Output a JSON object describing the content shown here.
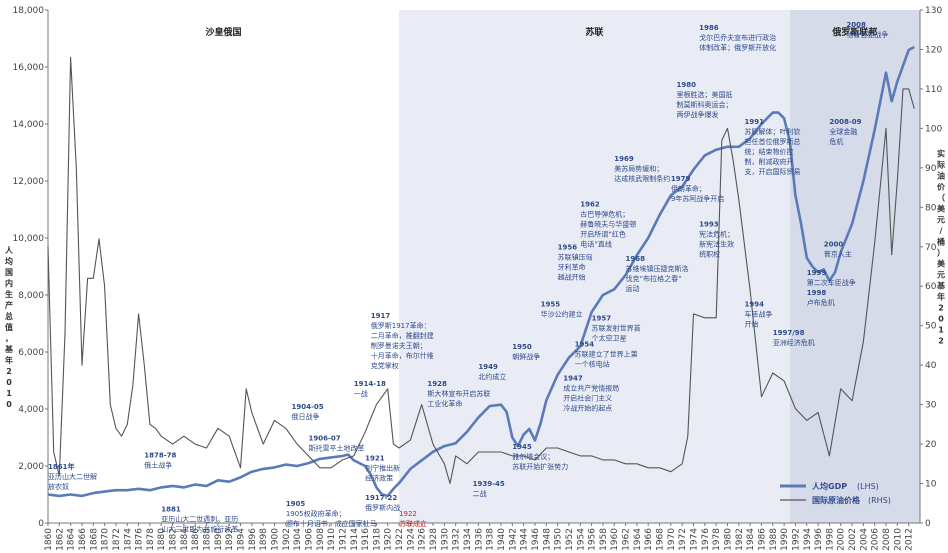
{
  "chart_data": {
    "type": "line",
    "title": "",
    "ylabel_left": "人均国内生产总值，基年2010",
    "ylabel_right": "实际油价（美元/桶）美元基年2012",
    "ylim_left": [
      0,
      18000
    ],
    "ylim_right": [
      0,
      130
    ],
    "xlim": [
      1860,
      2014
    ],
    "y_ticks_left": [
      0,
      2000,
      4000,
      6000,
      8000,
      10000,
      12000,
      14000,
      16000,
      18000
    ],
    "y_tick_labels_left": [
      "0",
      "2,000",
      "4,000",
      "6,000",
      "8,000",
      "10,000",
      "12,000",
      "14,000",
      "16,000",
      "18,000"
    ],
    "y_ticks_right": [
      0,
      10,
      20,
      30,
      40,
      50,
      60,
      70,
      80,
      90,
      100,
      110,
      120,
      130
    ],
    "y_tick_labels_right": [
      "0",
      "10",
      "20",
      "30",
      "40",
      "50",
      "60",
      "70",
      "80",
      "90",
      "100",
      "110",
      "120",
      "130"
    ],
    "x_tick_labels": [
      "1860",
      "1862",
      "1864",
      "1866",
      "1868",
      "1870",
      "1872",
      "1874",
      "1876",
      "1878",
      "1880",
      "1882",
      "1884",
      "1886",
      "1888",
      "1890",
      "1892",
      "1894",
      "1896",
      "1898",
      "1900",
      "1902",
      "1904",
      "1906",
      "1908",
      "1910",
      "1912",
      "1914",
      "1916",
      "1918",
      "1920",
      "1922",
      "1924",
      "1926",
      "1928",
      "1930",
      "1932",
      "1934",
      "1936",
      "1938",
      "1940",
      "1942",
      "1944",
      "1946",
      "1948",
      "1950",
      "1952",
      "1954",
      "1956",
      "1958",
      "1960",
      "1962",
      "1964",
      "1966",
      "1968",
      "1970",
      "1972",
      "1974",
      "1976",
      "1978",
      "1980",
      "1982",
      "1984",
      "1986",
      "1988",
      "1990",
      "1992",
      "1994",
      "1996",
      "1998",
      "2000",
      "2002",
      "2004",
      "2006",
      "2008",
      "2010",
      "2012"
    ],
    "eras": [
      {
        "label": "沙皇俄国",
        "from": 1860,
        "to": 1922,
        "shade": "#ffffff"
      },
      {
        "label": "苏联",
        "from": 1922,
        "to": 1991,
        "shade": "#e9ecf5"
      },
      {
        "label": "俄罗斯联邦",
        "from": 1991,
        "to": 2014,
        "shade": "#d6dbea"
      }
    ],
    "series": [
      {
        "name": "人均GDP",
        "axis_label": "(LHS)",
        "axis": "left",
        "color": "#5b7ab8",
        "x": [
          1860,
          1862,
          1864,
          1866,
          1868,
          1870,
          1872,
          1874,
          1876,
          1878,
          1880,
          1882,
          1884,
          1886,
          1888,
          1890,
          1892,
          1894,
          1896,
          1898,
          1900,
          1902,
          1904,
          1906,
          1908,
          1910,
          1912,
          1913,
          1914,
          1916,
          1917,
          1918,
          1919,
          1920,
          1921,
          1922,
          1924,
          1926,
          1928,
          1930,
          1932,
          1934,
          1936,
          1938,
          1940,
          1941,
          1942,
          1943,
          1944,
          1945,
          1946,
          1947,
          1948,
          1950,
          1952,
          1954,
          1956,
          1958,
          1960,
          1962,
          1964,
          1966,
          1968,
          1970,
          1972,
          1974,
          1976,
          1978,
          1980,
          1982,
          1984,
          1986,
          1988,
          1989,
          1990,
          1991,
          1992,
          1993,
          1994,
          1995,
          1996,
          1997,
          1998,
          1999,
          2000,
          2002,
          2004,
          2006,
          2008,
          2009,
          2010,
          2012,
          2013
        ],
        "values": [
          1000,
          950,
          1000,
          950,
          1050,
          1100,
          1150,
          1150,
          1200,
          1150,
          1250,
          1300,
          1250,
          1350,
          1300,
          1500,
          1450,
          1600,
          1800,
          1900,
          1950,
          2050,
          2000,
          2100,
          2250,
          2300,
          2350,
          2400,
          2200,
          2000,
          1700,
          1250,
          1000,
          950,
          1200,
          1400,
          1900,
          2200,
          2500,
          2700,
          2800,
          3200,
          3700,
          4100,
          4150,
          3900,
          3000,
          2700,
          3100,
          3300,
          2900,
          3500,
          4300,
          5200,
          5800,
          6200,
          7400,
          8000,
          8200,
          8700,
          9400,
          10000,
          10800,
          11500,
          11800,
          12400,
          12900,
          13100,
          13200,
          13200,
          13500,
          14000,
          14400,
          14400,
          14200,
          13400,
          11500,
          10500,
          9300,
          9000,
          8800,
          8900,
          8500,
          8800,
          9500,
          10500,
          12000,
          13800,
          15800,
          14800,
          15500,
          16600,
          16700
        ]
      },
      {
        "name": "国际原油价格",
        "axis_label": "(RHS)",
        "axis": "right",
        "color": "#555555",
        "x": [
          1860,
          1861,
          1862,
          1863,
          1864,
          1865,
          1866,
          1867,
          1868,
          1869,
          1870,
          1871,
          1872,
          1873,
          1874,
          1875,
          1876,
          1877,
          1878,
          1879,
          1880,
          1882,
          1884,
          1886,
          1888,
          1890,
          1892,
          1894,
          1895,
          1896,
          1898,
          1900,
          1902,
          1904,
          1906,
          1908,
          1910,
          1912,
          1914,
          1916,
          1918,
          1920,
          1921,
          1922,
          1924,
          1926,
          1928,
          1930,
          1931,
          1932,
          1934,
          1936,
          1938,
          1940,
          1942,
          1944,
          1946,
          1948,
          1950,
          1952,
          1954,
          1956,
          1958,
          1960,
          1962,
          1964,
          1966,
          1968,
          1970,
          1972,
          1973,
          1974,
          1976,
          1978,
          1979,
          1980,
          1981,
          1982,
          1984,
          1986,
          1988,
          1990,
          1992,
          1994,
          1996,
          1998,
          2000,
          2002,
          2004,
          2006,
          2008,
          2009,
          2010,
          2011,
          2012,
          2013
        ],
        "values": [
          70,
          18,
          12,
          48,
          118,
          90,
          40,
          62,
          62,
          72,
          60,
          30,
          24,
          22,
          25,
          35,
          53,
          40,
          25,
          24,
          22,
          20,
          22,
          20,
          19,
          24,
          22,
          14,
          34,
          28,
          20,
          26,
          24,
          20,
          17,
          14,
          14,
          16,
          17,
          23,
          30,
          34,
          20,
          19,
          21,
          30,
          20,
          15,
          10,
          17,
          15,
          18,
          18,
          18,
          17,
          17,
          16,
          19,
          19,
          18,
          17,
          17,
          16,
          16,
          15,
          15,
          14,
          14,
          13,
          15,
          22,
          53,
          52,
          52,
          97,
          100,
          92,
          82,
          59,
          32,
          38,
          36,
          29,
          26,
          28,
          17,
          34,
          31,
          46,
          71,
          100,
          68,
          87,
          110,
          110,
          105
        ]
      }
    ],
    "annotations": [
      {
        "year": "1861年",
        "lines": [
          "亚历山大二世解",
          "放农奴"
        ],
        "color": "#2e4a8a",
        "x": 1860,
        "y": 1900
      },
      {
        "year": "1878-78",
        "lines": [
          "俄土战争"
        ],
        "color": "#2e4a8a",
        "x": 1877,
        "y": 2300
      },
      {
        "year": "1881",
        "lines": [
          "亚历山大二世遇刺。亚历",
          "山大三世即为并施行改革"
        ],
        "color": "#2e4a8a",
        "x": 1880,
        "y": 400
      },
      {
        "year": "1904-05",
        "lines": [
          "俄日战争"
        ],
        "color": "#2e4a8a",
        "x": 1903,
        "y": 4000
      },
      {
        "year": "1906-07",
        "lines": [
          "斯托雷平土地改革"
        ],
        "color": "#2e4a8a",
        "x": 1906,
        "y": 2900
      },
      {
        "year": "1905",
        "lines": [
          "1905权政府革命；",
          "颁布十月诏书，成立国家杜马"
        ],
        "color": "#2e4a8a",
        "x": 1902,
        "y": 600
      },
      {
        "year": "1914-18",
        "lines": [
          "一战"
        ],
        "color": "#2e4a8a",
        "x": 1914,
        "y": 4800
      },
      {
        "year": "1917",
        "lines": [
          "俄罗斯1917革命：",
          "二月革命，推翻封建",
          "制罗曼诺夫王朝；",
          "十月革命，布尔什维",
          "克党掌权"
        ],
        "color": "#2e4a8a",
        "x": 1917,
        "y": 7200
      },
      {
        "year": "1921",
        "lines": [
          "列宁推出新",
          "经济政策"
        ],
        "color": "#2e4a8a",
        "x": 1916,
        "y": 2200
      },
      {
        "year": "1917-22",
        "lines": [
          "俄罗斯内战"
        ],
        "color": "#2e4a8a",
        "x": 1916,
        "y": 800
      },
      {
        "year": "1922",
        "lines": [
          "苏联成立"
        ],
        "color": "#c0282d",
        "x": 1922,
        "y": 250
      },
      {
        "year": "1928",
        "lines": [
          "斯大林宣布开启苏联",
          "工业化革命"
        ],
        "color": "#2e4a8a",
        "x": 1927,
        "y": 4800
      },
      {
        "year": "1939-45",
        "lines": [
          "二战"
        ],
        "color": "#2e4a8a",
        "x": 1935,
        "y": 1300
      },
      {
        "year": "1945",
        "lines": [
          "雅尔塔会议；",
          "苏联开始扩张势力"
        ],
        "color": "#2e4a8a",
        "x": 1942,
        "y": 2600
      },
      {
        "year": "1947",
        "lines": [
          "成立共产党情报局",
          "开启社会门主义",
          "冷战开始的起点"
        ],
        "color": "#2e4a8a",
        "x": 1951,
        "y": 5000
      },
      {
        "year": "1949",
        "lines": [
          "北约成立"
        ],
        "color": "#2e4a8a",
        "x": 1936,
        "y": 5400
      },
      {
        "year": "1950",
        "lines": [
          "朝鲜战争"
        ],
        "color": "#2e4a8a",
        "x": 1942,
        "y": 6100
      },
      {
        "year": "1954",
        "lines": [
          "苏联建立了世界上第",
          "一个核电站"
        ],
        "color": "#2e4a8a",
        "x": 1953,
        "y": 6200
      },
      {
        "year": "1955",
        "lines": [
          "华沙公约建立"
        ],
        "color": "#2e4a8a",
        "x": 1947,
        "y": 7600
      },
      {
        "year": "1956",
        "lines": [
          "苏联镇压匈",
          "牙利革命",
          "越战开始"
        ],
        "color": "#2e4a8a",
        "x": 1950,
        "y": 9600
      },
      {
        "year": "1957",
        "lines": [
          "苏联发射世界首",
          "个太空卫星"
        ],
        "color": "#2e4a8a",
        "x": 1956,
        "y": 7100
      },
      {
        "year": "1962",
        "lines": [
          "古巴导弹危机；",
          "赫鲁晓夫与华盛顿",
          "开启所谓“红色",
          "电话”直线"
        ],
        "color": "#2e4a8a",
        "x": 1954,
        "y": 11100
      },
      {
        "year": "1968",
        "lines": [
          "苏维埃镇压捷克斯洛",
          "伐克“布拉格之春”",
          "运动"
        ],
        "color": "#2e4a8a",
        "x": 1962,
        "y": 9200
      },
      {
        "year": "1969",
        "lines": [
          "美苏局势缓和；",
          "达成核武限制条约"
        ],
        "color": "#2e4a8a",
        "x": 1960,
        "y": 12700
      },
      {
        "year": "1979",
        "lines": [
          "伊朗革命；",
          "9年苏阿战争开启"
        ],
        "color": "#2e4a8a",
        "x": 1970,
        "y": 12000
      },
      {
        "year": "1980",
        "lines": [
          "里根胜选；美国抵",
          "制莫斯科奥运会；",
          "两伊战争爆发"
        ],
        "color": "#2e4a8a",
        "x": 1971,
        "y": 15300
      },
      {
        "year": "1986",
        "lines": [
          "戈尔巴乔夫宣布进行政治",
          "体制改革；俄罗斯开放化"
        ],
        "color": "#2e4a8a",
        "x": 1975,
        "y": 17300
      },
      {
        "year": "1993",
        "lines": [
          "宪法危机；",
          "新宪法生效",
          "统职权"
        ],
        "color": "#2e4a8a",
        "x": 1975,
        "y": 10400
      },
      {
        "year": "1991",
        "lines": [
          "苏联解体；叶利钦",
          "担任首位俄罗斯总",
          "统；结束物价控",
          "制，削减政府开",
          "支，开启国际贸易"
        ],
        "color": "#2e4a8a",
        "x": 1983,
        "y": 14000
      },
      {
        "year": "1994",
        "lines": [
          "车臣战争",
          "开始"
        ],
        "color": "#2e4a8a",
        "x": 1983,
        "y": 7600
      },
      {
        "year": "1997/98",
        "lines": [
          "亚洲经济危机"
        ],
        "color": "#2e4a8a",
        "x": 1988,
        "y": 6600
      },
      {
        "year": "1999",
        "lines": [
          "第二次车臣战争"
        ],
        "color": "#2e4a8a",
        "x": 1994,
        "y": 8700
      },
      {
        "year": "1998",
        "lines": [
          "卢布危机"
        ],
        "color": "#2e4a8a",
        "x": 1994,
        "y": 8000
      },
      {
        "year": "2000",
        "lines": [
          "普京入主"
        ],
        "color": "#2e4a8a",
        "x": 1997,
        "y": 9700
      },
      {
        "year": "2008-09",
        "lines": [
          "全球金融",
          "危机"
        ],
        "color": "#2e4a8a",
        "x": 1998,
        "y": 14000
      },
      {
        "year": "2008",
        "lines": [
          "格鲁吉亚战争"
        ],
        "color": "#2e4a8a",
        "x": 2001,
        "y": 17400
      }
    ],
    "legend": {
      "position": "bottom-right"
    },
    "grid": false
  }
}
